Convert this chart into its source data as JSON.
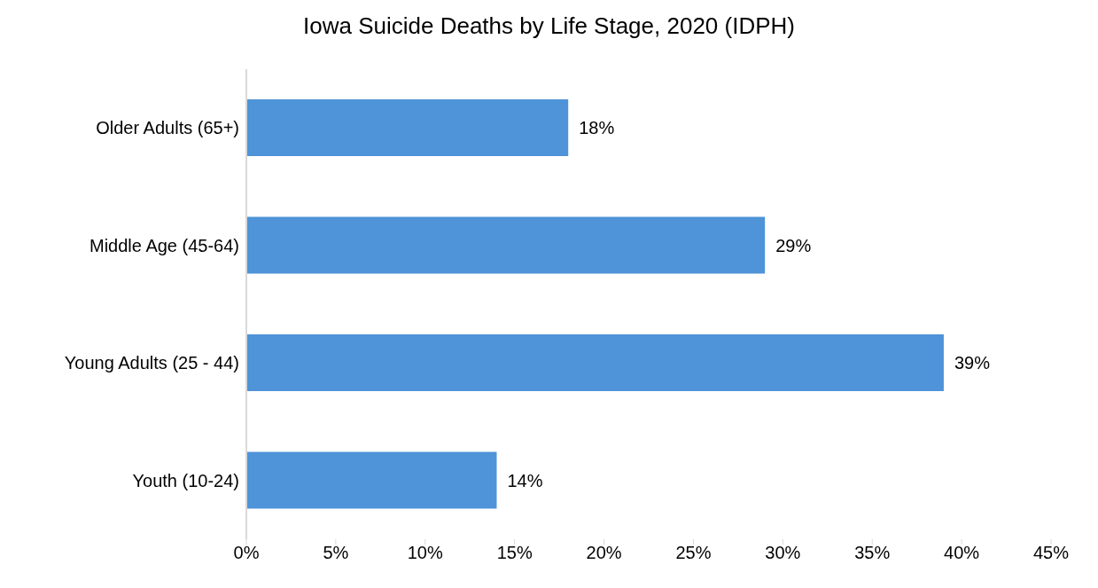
{
  "chart_data": {
    "type": "bar",
    "orientation": "horizontal",
    "title": "Iowa Suicide Deaths by Life Stage, 2020 (IDPH)",
    "categories": [
      "Older Adults (65+)",
      "Middle Age (45-64)",
      "Young Adults (25 - 44)",
      "Youth (10-24)"
    ],
    "values": [
      18,
      29,
      39,
      14
    ],
    "value_labels": [
      "18%",
      "29%",
      "39%",
      "14%"
    ],
    "color": "#4f93d8",
    "xlim": [
      0,
      45
    ],
    "xticks": [
      {
        "value": 0,
        "label": "0%"
      },
      {
        "value": 5,
        "label": "5%"
      },
      {
        "value": 10,
        "label": "10%"
      },
      {
        "value": 15,
        "label": "15%"
      },
      {
        "value": 20,
        "label": "20%"
      },
      {
        "value": 25,
        "label": "25%"
      },
      {
        "value": 30,
        "label": "30%"
      },
      {
        "value": 35,
        "label": "35%"
      },
      {
        "value": 40,
        "label": "40%"
      },
      {
        "value": 45,
        "label": "45%"
      }
    ],
    "grid": false
  }
}
